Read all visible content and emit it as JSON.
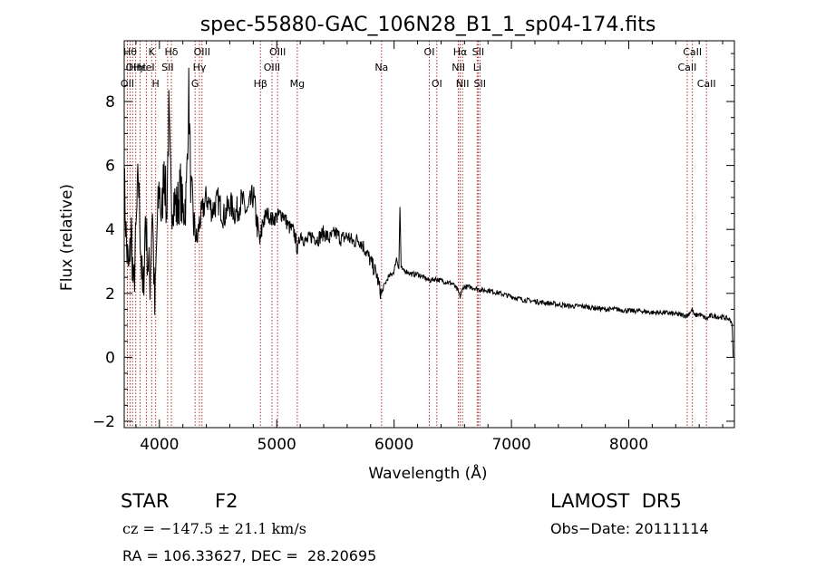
{
  "chart_data": {
    "type": "line",
    "title": "spec-55880-GAC_106N28_B1_1_sp04-174.fits",
    "xlabel": "Wavelength (Å)",
    "ylabel": "Flux (relative)",
    "xlim": [
      3700,
      8900
    ],
    "ylim": [
      -2.2,
      9.9
    ],
    "xticks": [
      4000,
      5000,
      6000,
      7000,
      8000
    ],
    "yticks": [
      -2,
      0,
      2,
      4,
      6,
      8
    ],
    "grid": false,
    "series": [
      {
        "values": [
          [
            3700,
            5.6
          ],
          [
            3720,
            3.4
          ],
          [
            3740,
            2.6
          ],
          [
            3760,
            4.0
          ],
          [
            3780,
            2.0
          ],
          [
            3800,
            3.8
          ],
          [
            3820,
            5.7
          ],
          [
            3840,
            3.6
          ],
          [
            3860,
            1.6
          ],
          [
            3880,
            4.4
          ],
          [
            3900,
            3.1
          ],
          [
            3920,
            2.4
          ],
          [
            3940,
            4.8
          ],
          [
            3960,
            1.4
          ],
          [
            3980,
            4.0
          ],
          [
            4000,
            5.4
          ],
          [
            4020,
            4.2
          ],
          [
            4040,
            6.3
          ],
          [
            4060,
            4.3
          ],
          [
            4080,
            7.6
          ],
          [
            4100,
            4.8
          ],
          [
            4120,
            5.0
          ],
          [
            4150,
            4.6
          ],
          [
            4180,
            5.3
          ],
          [
            4200,
            4.4
          ],
          [
            4230,
            5.1
          ],
          [
            4250,
            8.3
          ],
          [
            4270,
            5.0
          ],
          [
            4300,
            4.0
          ],
          [
            4320,
            3.6
          ],
          [
            4340,
            4.2
          ],
          [
            4370,
            4.6
          ],
          [
            4400,
            5.0
          ],
          [
            4450,
            4.6
          ],
          [
            4500,
            4.9
          ],
          [
            4550,
            4.4
          ],
          [
            4600,
            4.8
          ],
          [
            4650,
            4.5
          ],
          [
            4700,
            4.9
          ],
          [
            4750,
            4.5
          ],
          [
            4800,
            5.1
          ],
          [
            4830,
            4.2
          ],
          [
            4860,
            3.5
          ],
          [
            4880,
            4.3
          ],
          [
            4920,
            4.5
          ],
          [
            4960,
            4.3
          ],
          [
            5000,
            4.4
          ],
          [
            5050,
            4.5
          ],
          [
            5100,
            4.1
          ],
          [
            5150,
            3.9
          ],
          [
            5180,
            3.3
          ],
          [
            5200,
            3.9
          ],
          [
            5250,
            3.6
          ],
          [
            5300,
            3.8
          ],
          [
            5350,
            3.7
          ],
          [
            5400,
            3.9
          ],
          [
            5450,
            3.7
          ],
          [
            5500,
            3.9
          ],
          [
            5550,
            3.7
          ],
          [
            5600,
            3.8
          ],
          [
            5650,
            3.6
          ],
          [
            5700,
            3.7
          ],
          [
            5750,
            3.4
          ],
          [
            5800,
            3.0
          ],
          [
            5850,
            2.6
          ],
          [
            5880,
            2.1
          ],
          [
            5895,
            1.95
          ],
          [
            5910,
            2.2
          ],
          [
            5950,
            2.5
          ],
          [
            5980,
            2.6
          ],
          [
            6000,
            2.7
          ],
          [
            6020,
            3.1
          ],
          [
            6040,
            2.8
          ],
          [
            6050,
            4.7
          ],
          [
            6060,
            2.8
          ],
          [
            6080,
            2.7
          ],
          [
            6100,
            2.7
          ],
          [
            6150,
            2.6
          ],
          [
            6200,
            2.6
          ],
          [
            6250,
            2.5
          ],
          [
            6300,
            2.4
          ],
          [
            6350,
            2.45
          ],
          [
            6400,
            2.4
          ],
          [
            6450,
            2.35
          ],
          [
            6500,
            2.3
          ],
          [
            6540,
            2.1
          ],
          [
            6563,
            1.9
          ],
          [
            6590,
            2.2
          ],
          [
            6650,
            2.2
          ],
          [
            6700,
            2.15
          ],
          [
            6750,
            2.1
          ],
          [
            6800,
            2.1
          ],
          [
            6850,
            2.05
          ],
          [
            6900,
            2.0
          ],
          [
            7000,
            1.9
          ],
          [
            7100,
            1.8
          ],
          [
            7200,
            1.75
          ],
          [
            7300,
            1.7
          ],
          [
            7400,
            1.65
          ],
          [
            7500,
            1.6
          ],
          [
            7600,
            1.6
          ],
          [
            7700,
            1.55
          ],
          [
            7800,
            1.5
          ],
          [
            7900,
            1.5
          ],
          [
            8000,
            1.45
          ],
          [
            8100,
            1.45
          ],
          [
            8200,
            1.4
          ],
          [
            8300,
            1.4
          ],
          [
            8400,
            1.35
          ],
          [
            8500,
            1.3
          ],
          [
            8540,
            1.5
          ],
          [
            8560,
            1.3
          ],
          [
            8600,
            1.35
          ],
          [
            8662,
            1.2
          ],
          [
            8700,
            1.3
          ],
          [
            8800,
            1.25
          ],
          [
            8850,
            1.2
          ],
          [
            8880,
            1.1
          ],
          [
            8890,
            0.0
          ]
        ]
      }
    ],
    "lines": [
      {
        "x": 3727,
        "labels": [
          "OII"
        ],
        "row": 2
      },
      {
        "x": 3750,
        "labels": [
          "Hθ"
        ],
        "row": 0
      },
      {
        "x": 3771,
        "labels": [
          "OII"
        ],
        "row": 1
      },
      {
        "x": 3798,
        "labels": [
          "Hη"
        ],
        "row": 1
      },
      {
        "x": 3835,
        "labels": [
          "Hε"
        ],
        "row": 1
      },
      {
        "x": 3889,
        "labels": [
          "HeI"
        ],
        "row": 1
      },
      {
        "x": 3934,
        "labels": [
          "K"
        ],
        "row": 0
      },
      {
        "x": 3968,
        "labels": [
          "H"
        ],
        "row": 2
      },
      {
        "x": 4070,
        "labels": [
          "SII"
        ],
        "row": 1
      },
      {
        "x": 4102,
        "labels": [
          "Hδ"
        ],
        "row": 0
      },
      {
        "x": 4304,
        "labels": [
          "G"
        ],
        "row": 2
      },
      {
        "x": 4341,
        "labels": [
          "Hγ"
        ],
        "row": 1
      },
      {
        "x": 4363,
        "labels": [
          "OIII"
        ],
        "row": 0
      },
      {
        "x": 4861,
        "labels": [
          "Hβ"
        ],
        "row": 2
      },
      {
        "x": 4959,
        "labels": [
          "OIII"
        ],
        "row": 1
      },
      {
        "x": 5007,
        "labels": [
          "OIII"
        ],
        "row": 0
      },
      {
        "x": 5175,
        "labels": [
          "Mg"
        ],
        "row": 2
      },
      {
        "x": 5893,
        "labels": [
          "Na"
        ],
        "row": 1
      },
      {
        "x": 6300,
        "labels": [
          "OI"
        ],
        "row": 0
      },
      {
        "x": 6364,
        "labels": [
          "OI"
        ],
        "row": 2
      },
      {
        "x": 6548,
        "labels": [
          "NII"
        ],
        "row": 1
      },
      {
        "x": 6563,
        "labels": [
          "Hα"
        ],
        "row": 0
      },
      {
        "x": 6583,
        "labels": [
          "NII"
        ],
        "row": 2
      },
      {
        "x": 6708,
        "labels": [
          "Li"
        ],
        "row": 1
      },
      {
        "x": 6716,
        "labels": [
          "SII"
        ],
        "row": 0
      },
      {
        "x": 6731,
        "labels": [
          "SII"
        ],
        "row": 2
      },
      {
        "x": 8498,
        "labels": [
          "CaII"
        ],
        "row": 1
      },
      {
        "x": 8542,
        "labels": [
          "CaII"
        ],
        "row": 0
      },
      {
        "x": 8662,
        "labels": [
          "CaII"
        ],
        "row": 2
      }
    ],
    "line_color": "#b03030"
  },
  "info": {
    "object_class": "STAR",
    "subclass": "F2",
    "survey": "LAMOST  DR5",
    "redshift": "cz = −147.5 ± 21.1 km/s",
    "obs_date": "Obs−Date: 20111114",
    "coords": "RA = 106.33627, DEC =  28.20695"
  }
}
